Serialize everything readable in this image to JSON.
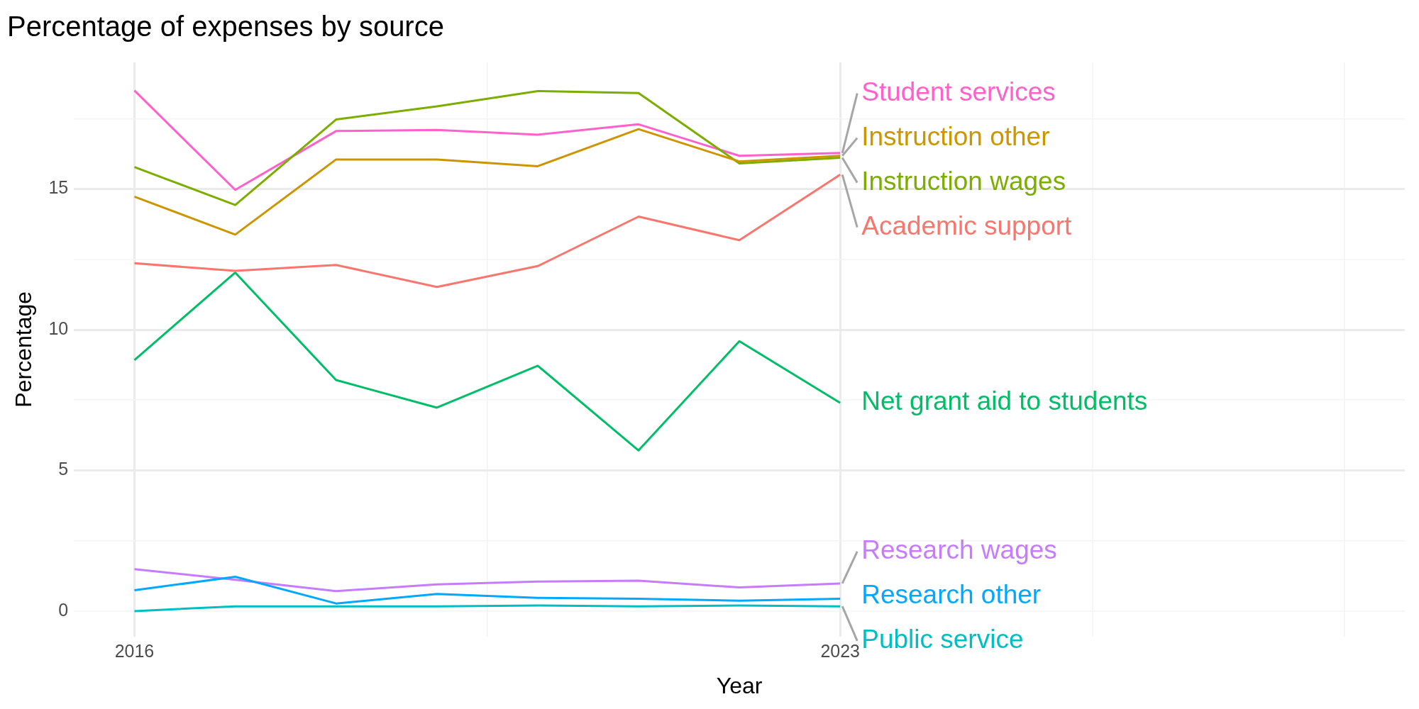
{
  "chart_data": {
    "type": "line",
    "title": "Percentage of expenses by source",
    "xlabel": "Year",
    "ylabel": "Percentage",
    "x": [
      2016,
      2017,
      2018,
      2019,
      2020,
      2021,
      2022,
      2023
    ],
    "xlim": [
      2015.4,
      2028.6
    ],
    "xticks": [
      2016,
      {
        "value": 2019.5,
        "label": null
      },
      2023,
      {
        "value": 2025.5,
        "label": null
      },
      {
        "value": 2028,
        "label": null
      }
    ],
    "ylim": [
      -0.9,
      19.5
    ],
    "yticks": [
      0,
      {
        "value": 2.5,
        "label": null
      },
      5,
      {
        "value": 7.5,
        "label": null
      },
      10,
      {
        "value": 12.5,
        "label": null
      },
      15,
      {
        "value": 17.5,
        "label": null
      }
    ],
    "grid": true,
    "legend": false,
    "marker": "none",
    "line_style": "solid",
    "series": [
      {
        "name": "Academic support",
        "color": "#f8766d",
        "values": [
          12.36,
          12.09,
          12.3,
          11.52,
          12.26,
          14.02,
          13.18,
          15.51
        ]
      },
      {
        "name": "Instruction other",
        "color": "#cd9600",
        "values": [
          14.73,
          13.38,
          16.05,
          16.05,
          15.81,
          17.13,
          15.98,
          16.18
        ]
      },
      {
        "name": "Instruction wages",
        "color": "#7cae00",
        "values": [
          15.78,
          14.43,
          17.47,
          17.94,
          18.48,
          18.41,
          15.91,
          16.11
        ]
      },
      {
        "name": "Net grant aid to students",
        "color": "#00be67",
        "values": [
          8.92,
          12.03,
          8.21,
          7.23,
          8.72,
          5.71,
          9.59,
          7.4
        ]
      },
      {
        "name": "Public service",
        "color": "#00bfc4",
        "values": [
          0,
          0.17,
          0.17,
          0.17,
          0.2,
          0.17,
          0.2,
          0.17
        ]
      },
      {
        "name": "Research other",
        "color": "#00a9ff",
        "values": [
          0.74,
          1.22,
          0.27,
          0.61,
          0.47,
          0.44,
          0.37,
          0.44
        ]
      },
      {
        "name": "Research wages",
        "color": "#c77cff",
        "values": [
          1.49,
          1.11,
          0.71,
          0.95,
          1.05,
          1.08,
          0.84,
          0.98
        ]
      },
      {
        "name": "Student services",
        "color": "#ff61cc",
        "values": [
          18.5,
          14.97,
          17.06,
          17.1,
          16.93,
          17.3,
          16.18,
          16.28
        ]
      }
    ]
  }
}
